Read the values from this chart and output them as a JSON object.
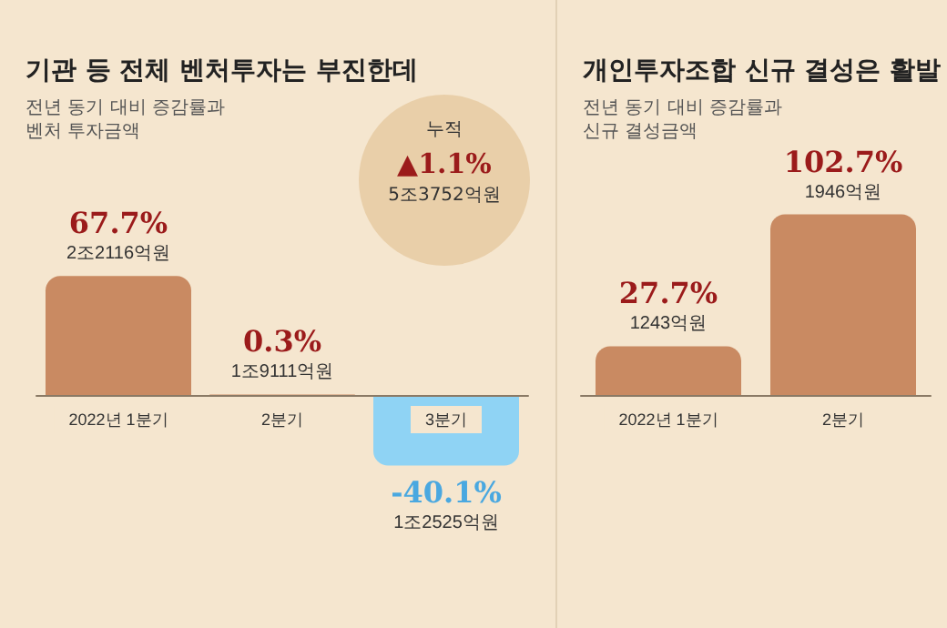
{
  "chart_data": [
    {
      "type": "bar",
      "title": "기관 등 전체 벤처투자는 부진한데",
      "subtitle": "전년 동기 대비 증감률과\n벤처 투자금액",
      "categories": [
        "2022년 1분기",
        "2분기",
        "3분기"
      ],
      "values": [
        67.7,
        0.3,
        -40.1
      ],
      "colors": [
        "#c98a62",
        "#c98a62",
        "#8fd3f4"
      ],
      "value_labels": [
        "67.7%\n2조2116억원",
        "0.3%\n1조9111억원",
        "-40.1%\n1조2525억원"
      ],
      "annotations": [
        "누적\n▲1.1%\n5조3752억원"
      ]
    },
    {
      "type": "bar",
      "title": "개인투자조합 신규 결성은 활발",
      "subtitle": "전년 동기 대비 증감률과\n신규 결성금액",
      "categories": [
        "2022년 1분기",
        "2분기"
      ],
      "values": [
        27.7,
        102.7
      ],
      "colors": [
        "#c98a62",
        "#c98a62"
      ],
      "value_labels": [
        "27.7%\n1243억원",
        "102.7%\n1946억원"
      ]
    }
  ]
}
